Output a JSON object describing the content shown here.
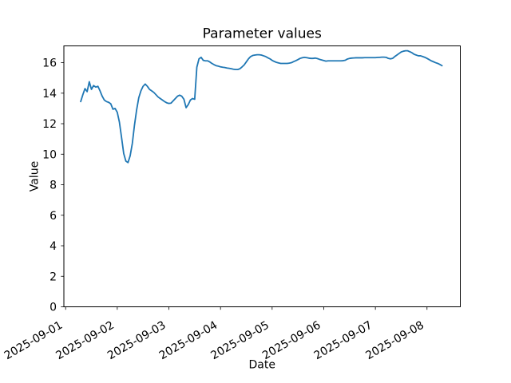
{
  "figure": {
    "background": "#ffffff"
  },
  "chart_data": {
    "type": "line",
    "title": "Parameter values",
    "xlabel": "Date",
    "ylabel": "Value",
    "grid": false,
    "legend": "none",
    "x_tick_labels": [
      "2025-09-01",
      "2025-09-02",
      "2025-09-03",
      "2025-09-04",
      "2025-09-05",
      "2025-09-06",
      "2025-09-07",
      "2025-09-08"
    ],
    "y_tick_values": [
      0,
      2,
      4,
      6,
      8,
      10,
      12,
      14,
      16
    ],
    "ylim": [
      0,
      17.1
    ],
    "xlim_days_from_first_tick": [
      -0.034,
      7.645
    ],
    "axis_color": "#000000",
    "series": [
      {
        "name": "Parameter",
        "color": "#1f77b4",
        "start": "2025-09-01 07:00",
        "interval_hours": 1,
        "values": [
          13.45,
          13.9,
          14.3,
          14.1,
          14.75,
          14.25,
          14.5,
          14.4,
          14.45,
          14.15,
          13.8,
          13.55,
          13.45,
          13.4,
          13.3,
          12.95,
          13.0,
          12.75,
          12.1,
          11.1,
          10.05,
          9.55,
          9.45,
          9.9,
          10.7,
          11.9,
          12.9,
          13.7,
          14.15,
          14.45,
          14.6,
          14.45,
          14.25,
          14.15,
          14.05,
          13.9,
          13.75,
          13.65,
          13.55,
          13.45,
          13.37,
          13.33,
          13.35,
          13.5,
          13.65,
          13.8,
          13.87,
          13.8,
          13.6,
          13.05,
          13.25,
          13.55,
          13.65,
          13.6,
          15.7,
          16.25,
          16.35,
          16.15,
          16.12,
          16.12,
          16.05,
          15.95,
          15.87,
          15.8,
          15.77,
          15.73,
          15.7,
          15.68,
          15.65,
          15.63,
          15.6,
          15.57,
          15.55,
          15.55,
          15.6,
          15.72,
          15.85,
          16.05,
          16.25,
          16.4,
          16.47,
          16.5,
          16.52,
          16.52,
          16.5,
          16.45,
          16.4,
          16.32,
          16.25,
          16.15,
          16.08,
          16.02,
          15.98,
          15.95,
          15.95,
          15.95,
          15.95,
          15.97,
          16.0,
          16.07,
          16.13,
          16.2,
          16.28,
          16.32,
          16.35,
          16.33,
          16.3,
          16.28,
          16.28,
          16.3,
          16.27,
          16.22,
          16.18,
          16.14,
          16.1,
          16.12,
          16.12,
          16.12,
          16.12,
          16.12,
          16.12,
          16.12,
          16.13,
          16.16,
          16.24,
          16.28,
          16.3,
          16.31,
          16.32,
          16.32,
          16.32,
          16.32,
          16.33,
          16.33,
          16.33,
          16.33,
          16.33,
          16.33,
          16.34,
          16.35,
          16.36,
          16.36,
          16.35,
          16.28,
          16.25,
          16.28,
          16.4,
          16.5,
          16.6,
          16.7,
          16.75,
          16.78,
          16.78,
          16.72,
          16.65,
          16.55,
          16.5,
          16.45,
          16.45,
          16.4,
          16.35,
          16.28,
          16.2,
          16.12,
          16.06,
          16.0,
          15.95,
          15.88,
          15.8
        ]
      }
    ]
  }
}
